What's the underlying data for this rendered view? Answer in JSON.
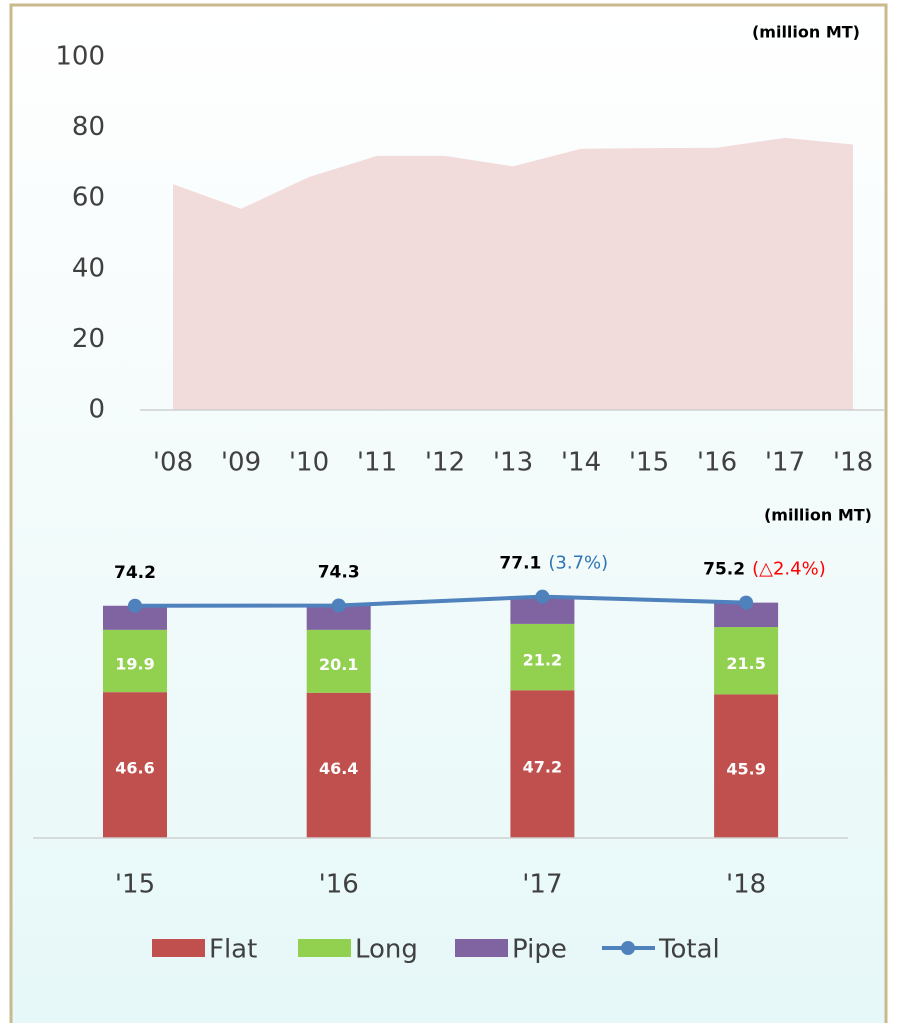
{
  "chart_data": [
    {
      "type": "area",
      "unit": "(million MT)",
      "categories": [
        "'08",
        "'09",
        "'10",
        "'11",
        "'12",
        "'13",
        "'14",
        "'15",
        "'16",
        "'17",
        "'18"
      ],
      "values": [
        64,
        57,
        66,
        72,
        72,
        69,
        74,
        74.2,
        74.3,
        77.1,
        75.2
      ],
      "color": "#f2dcdb",
      "ylim": [
        0,
        100
      ],
      "yticks": [
        0,
        20,
        40,
        60,
        80,
        100
      ]
    },
    {
      "type": "stacked_bar",
      "unit": "(million MT)",
      "categories": [
        "'15",
        "'16",
        "'17",
        "'18"
      ],
      "ylim": [
        0,
        100
      ],
      "series": [
        {
          "name": "Flat",
          "color": "#c0504d",
          "values": [
            46.6,
            46.4,
            47.2,
            45.9
          ]
        },
        {
          "name": "Long",
          "color": "#92d050",
          "values": [
            19.9,
            20.1,
            21.2,
            21.5
          ]
        },
        {
          "name": "Pipe",
          "color": "#8064a2",
          "values": [
            7.7,
            7.8,
            8.7,
            7.8
          ],
          "labels_shown": false
        },
        {
          "name": "Total",
          "type": "line",
          "color": "#4f81bd",
          "values": [
            74.2,
            74.3,
            77.1,
            75.2
          ]
        }
      ],
      "annotations": [
        {
          "category": "'17",
          "text": "(3.7%)",
          "color": "#2e75b6"
        },
        {
          "category": "'18",
          "text": "(△2.4%)",
          "color": "#ff0000"
        }
      ]
    }
  ]
}
